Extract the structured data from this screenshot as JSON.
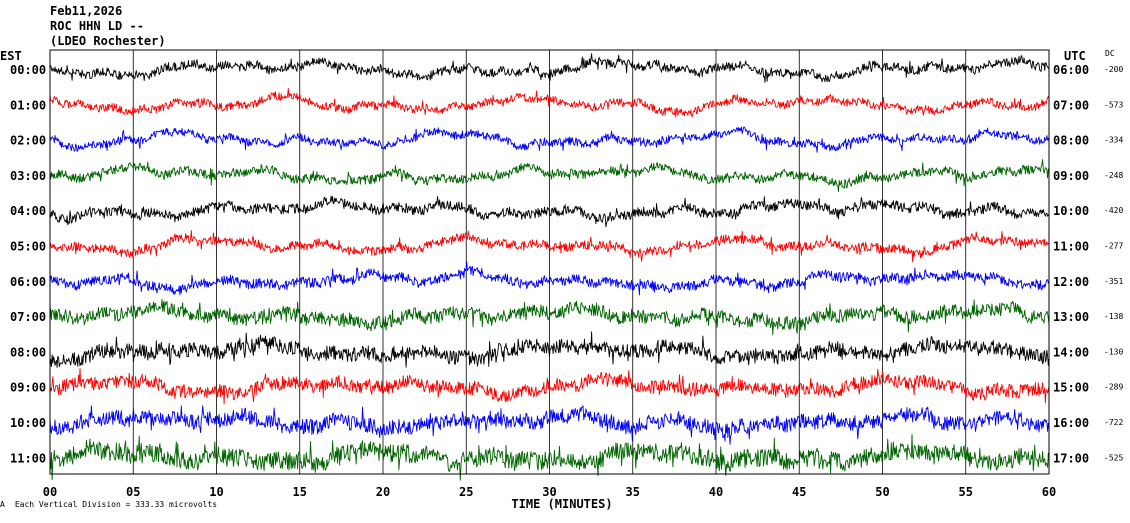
{
  "header": {
    "date": "Feb11,2026",
    "station": "ROC HHN LD --",
    "location": "(LDEO Rochester)"
  },
  "footer": {
    "mark": "A",
    "scale_note": "Each Vertical Division =  333.33 microvolts"
  },
  "chart_data": {
    "type": "line",
    "title": "",
    "xlabel": "TIME (MINUTES)",
    "x_ticks": [
      "00",
      "05",
      "10",
      "15",
      "20",
      "25",
      "30",
      "35",
      "40",
      "45",
      "50",
      "55",
      "60"
    ],
    "xlim": [
      0,
      60
    ],
    "left_axis_title": "EST",
    "right_axis_title": "UTC",
    "dc_title": "DC",
    "line_colors": [
      "#000000",
      "#ff0000",
      "#0000ff",
      "#006400"
    ],
    "rows": [
      {
        "est": "00:00",
        "utc": "06:00",
        "dc": "-200"
      },
      {
        "est": "01:00",
        "utc": "07:00",
        "dc": "-573"
      },
      {
        "est": "02:00",
        "utc": "08:00",
        "dc": "-334"
      },
      {
        "est": "03:00",
        "utc": "09:00",
        "dc": "-248"
      },
      {
        "est": "04:00",
        "utc": "10:00",
        "dc": "-420"
      },
      {
        "est": "05:00",
        "utc": "11:00",
        "dc": "-277"
      },
      {
        "est": "06:00",
        "utc": "12:00",
        "dc": "-351"
      },
      {
        "est": "07:00",
        "utc": "13:00",
        "dc": "-138"
      },
      {
        "est": "08:00",
        "utc": "14:00",
        "dc": "-130"
      },
      {
        "est": "09:00",
        "utc": "15:00",
        "dc": "-289"
      },
      {
        "est": "10:00",
        "utc": "16:00",
        "dc": "-722"
      },
      {
        "est": "11:00",
        "utc": "17:00",
        "dc": "-525"
      }
    ],
    "noise_amplitude": [
      0.5,
      0.45,
      0.45,
      0.5,
      0.55,
      0.5,
      0.55,
      0.75,
      0.8,
      0.75,
      0.85,
      1.0
    ]
  }
}
